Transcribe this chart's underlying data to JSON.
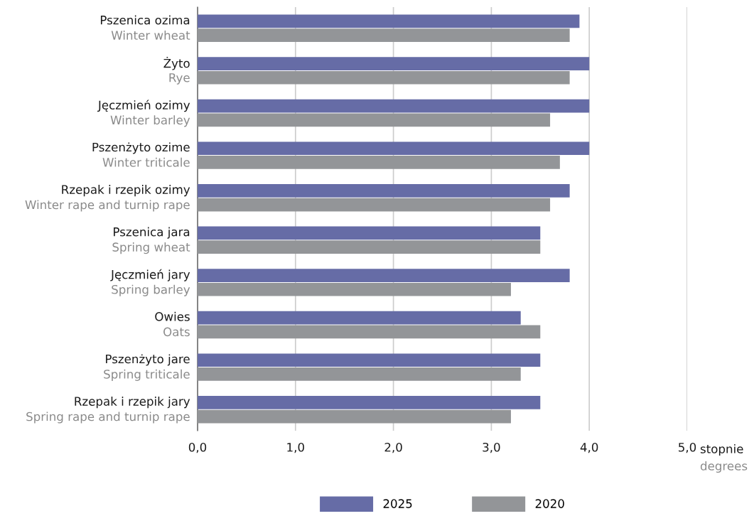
{
  "chart_data": {
    "type": "bar",
    "orientation": "horizontal",
    "categories": [
      "Pszenica ozima\nWinter wheat",
      "Żyto\nRye",
      "Jęczmień ozimy\nWinter barley",
      "Pszenżyto ozime\nWinter triticale",
      "Rzepak i rzepik ozimy\nWinter rape and turnip rape",
      "Pszenica jara\nSpring wheat",
      "Jęczmień jary\nSpring barley",
      "Owies\nOats",
      "Pszenżyto jare\nSpring triticale",
      "Rzepak i rzepik jary\nSpring rape and turnip rape"
    ],
    "series": [
      {
        "name": "2025",
        "color": "#666ca6",
        "values": [
          3.9,
          4.0,
          4.0,
          4.0,
          3.8,
          3.5,
          3.8,
          3.3,
          3.5,
          3.5
        ]
      },
      {
        "name": "2020",
        "color": "#939598",
        "values": [
          3.8,
          3.8,
          3.6,
          3.7,
          3.6,
          3.5,
          3.2,
          3.5,
          3.3,
          3.2
        ]
      }
    ],
    "xlabel": "stopnie\ndegrees",
    "xlim": [
      0,
      5
    ],
    "xticks": [
      {
        "value": 0,
        "label": "0,0"
      },
      {
        "value": 1,
        "label": "1,0"
      },
      {
        "value": 2,
        "label": "2,0"
      },
      {
        "value": 3,
        "label": "3,0"
      },
      {
        "value": 4,
        "label": "4,0"
      },
      {
        "value": 5,
        "label": "5,0"
      }
    ],
    "grid": "x",
    "legend": "bottom"
  }
}
